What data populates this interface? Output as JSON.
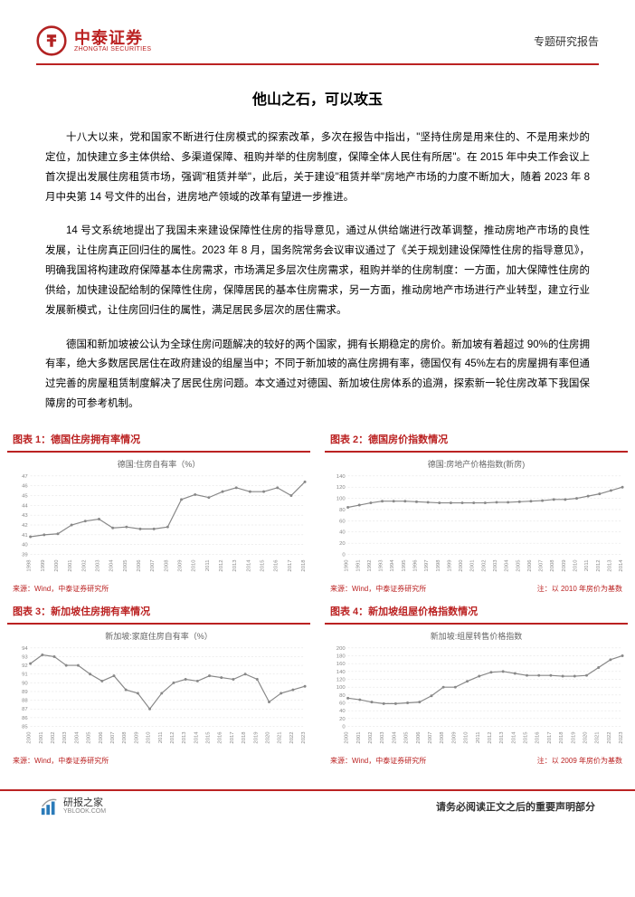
{
  "header": {
    "brand_cn": "中泰证券",
    "brand_en": "ZHONGTAI SECURITIES",
    "brand_color": "#b22222",
    "report_type": "专题研究报告"
  },
  "title": "他山之石，可以攻玉",
  "paragraphs": [
    "十八大以来，党和国家不断进行住房模式的探索改革，多次在报告中指出，\"坚持住房是用来住的、不是用来炒的定位，加快建立多主体供给、多渠道保障、租购并举的住房制度，保障全体人民住有所居\"。在 2015 年中央工作会议上首次提出发展住房租赁市场，强调\"租赁并举\"，此后，关于建设\"租赁并举\"房地产市场的力度不断加大，随着 2023 年 8 月中央第 14 号文件的出台，进房地产领域的改革有望进一步推进。",
    "14 号文系统地提出了我国未来建设保障性住房的指导意见，通过从供给端进行改革调整，推动房地产市场的良性发展，让住房真正回归住的属性。2023 年 8 月，国务院常务会议审议通过了《关于规划建设保障性住房的指导意见》，明确我国将构建政府保障基本住房需求，市场满足多层次住房需求，租购并举的住房制度：一方面，加大保障性住房的供给，加快建设配给制的保障性住房，保障居民的基本住房需求，另一方面，推动房地产市场进行产业转型，建立行业发展新模式，让住房回归住的属性，满足居民多层次的居住需求。",
    "德国和新加坡被公认为全球住房问题解决的较好的两个国家，拥有长期稳定的房价。新加坡有着超过 90%的住房拥有率，绝大多数居民居住在政府建设的组屋当中；不同于新加坡的高住房拥有率，德国仅有 45%左右的房屋拥有率但通过完善的房屋租赁制度解决了居民住房问题。本文通过对德国、新加坡住房体系的追溯，探索新一轮住房改革下我国保障房的可参考机制。"
  ],
  "charts": [
    {
      "title": "图表 1：德国住房拥有率情况",
      "subtitle": "德国:住房自有率（%）",
      "type": "line",
      "x_labels": [
        "1998",
        "1999",
        "2000",
        "2001",
        "2002",
        "2003",
        "2004",
        "2005",
        "2006",
        "2007",
        "2008",
        "2009",
        "2010",
        "2011",
        "2012",
        "2013",
        "2014",
        "2015",
        "2016",
        "2017",
        "2018"
      ],
      "y_ticks": [
        39,
        40,
        41,
        42,
        43,
        44,
        45,
        46,
        47
      ],
      "ylim": [
        39,
        47
      ],
      "values": [
        40.8,
        41.0,
        41.1,
        42.0,
        42.4,
        42.6,
        41.7,
        41.8,
        41.6,
        41.6,
        41.8,
        44.6,
        45.1,
        44.8,
        45.4,
        45.8,
        45.4,
        45.4,
        45.8,
        45.0,
        46.4
      ],
      "line_color": "#888888",
      "grid_color": "#dddddd",
      "background_color": "#ffffff",
      "source": "来源：Wind，中泰证券研究所",
      "note": ""
    },
    {
      "title": "图表 2：德国房价指数情况",
      "subtitle": "德国:房地产价格指数(新房)",
      "type": "line",
      "x_labels": [
        "1990",
        "1991",
        "1992",
        "1993",
        "1994",
        "1995",
        "1996",
        "1997",
        "1998",
        "1999",
        "2000",
        "2001",
        "2002",
        "2003",
        "2004",
        "2005",
        "2006",
        "2007",
        "2008",
        "2009",
        "2010",
        "2011",
        "2012",
        "2013",
        "2014"
      ],
      "y_ticks": [
        0,
        20,
        40,
        60,
        80,
        100,
        120,
        140
      ],
      "ylim": [
        0,
        140
      ],
      "values": [
        84,
        88,
        92,
        95,
        95,
        95,
        94,
        93,
        92,
        92,
        92,
        92,
        92,
        93,
        93,
        94,
        95,
        96,
        98,
        98,
        100,
        104,
        108,
        114,
        120
      ],
      "line_color": "#888888",
      "grid_color": "#dddddd",
      "background_color": "#ffffff",
      "source": "来源：Wind，中泰证券研究所",
      "note": "注：以 2010 年房价为基数"
    },
    {
      "title": "图表 3：新加坡住房拥有率情况",
      "subtitle": "新加坡:家庭住房自有率（%）",
      "type": "line",
      "x_labels": [
        "2000",
        "2001",
        "2002",
        "2003",
        "2004",
        "2005",
        "2006",
        "2007",
        "2008",
        "2009",
        "2010",
        "2011",
        "2012",
        "2013",
        "2014",
        "2015",
        "2016",
        "2017",
        "2018",
        "2019",
        "2020",
        "2021",
        "2022",
        "2023"
      ],
      "y_ticks": [
        85,
        86,
        87,
        88,
        89,
        90,
        91,
        92,
        93,
        94
      ],
      "ylim": [
        85,
        94
      ],
      "values": [
        92.2,
        93.2,
        93.0,
        92.0,
        92.0,
        91.0,
        90.2,
        90.8,
        89.2,
        88.8,
        87.0,
        88.8,
        90.0,
        90.4,
        90.2,
        90.8,
        90.6,
        90.4,
        91.0,
        90.4,
        87.8,
        88.8,
        89.2,
        89.6
      ],
      "line_color": "#888888",
      "grid_color": "#dddddd",
      "background_color": "#ffffff",
      "source": "来源：Wind，中泰证券研究所",
      "note": ""
    },
    {
      "title": "图表 4：新加坡组屋价格指数情况",
      "subtitle": "新加坡:组屋转售价格指数",
      "type": "line",
      "x_labels": [
        "2000",
        "2001",
        "2002",
        "2003",
        "2004",
        "2005",
        "2006",
        "2007",
        "2008",
        "2009",
        "2010",
        "2011",
        "2012",
        "2013",
        "2014",
        "2015",
        "2016",
        "2017",
        "2018",
        "2019",
        "2020",
        "2021",
        "2022",
        "2023"
      ],
      "y_ticks": [
        0,
        20,
        40,
        60,
        80,
        100,
        120,
        140,
        160,
        180,
        200
      ],
      "ylim": [
        0,
        200
      ],
      "values": [
        72,
        68,
        62,
        58,
        58,
        60,
        62,
        78,
        100,
        100,
        115,
        128,
        138,
        140,
        135,
        130,
        130,
        130,
        128,
        128,
        130,
        150,
        170,
        180
      ],
      "line_color": "#888888",
      "grid_color": "#dddddd",
      "background_color": "#ffffff",
      "source": "来源：Wind，中泰证券研究所",
      "note": "注：以 2009 年房价为基数"
    }
  ],
  "footer": {
    "yanbao_cn": "研报之家",
    "yanbao_en": "YBLOOK.COM",
    "disclaimer": "请务必阅读正文之后的重要声明部分"
  }
}
